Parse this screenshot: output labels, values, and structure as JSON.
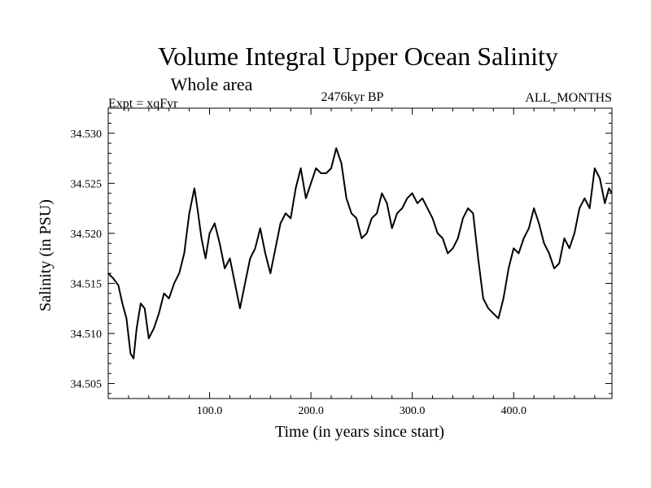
{
  "chart_data": {
    "type": "line",
    "title": "Volume Integral Upper Ocean Salinity",
    "subtitle": "Whole area",
    "expt_label": "Expt = xqFvr",
    "period_label": "2476kyr BP",
    "months_label": "ALL_MONTHS",
    "xlabel": "Time (in years since start)",
    "ylabel": "Salinity (in PSU)",
    "xlim": [
      0,
      497
    ],
    "ylim": [
      34.5035,
      34.5325
    ],
    "xticks": [
      100,
      200,
      300,
      400
    ],
    "xtick_labels": [
      "100.0",
      "200.0",
      "300.0",
      "400.0"
    ],
    "yticks": [
      34.505,
      34.51,
      34.515,
      34.52,
      34.525,
      34.53
    ],
    "ytick_labels": [
      "34.505",
      "34.510",
      "34.515",
      "34.520",
      "34.525",
      "34.530"
    ],
    "grid": false,
    "series": [
      {
        "name": "Salinity",
        "color": "#000000",
        "x": [
          0,
          5,
          10,
          14,
          18,
          22,
          25,
          28,
          32,
          36,
          40,
          45,
          50,
          55,
          60,
          65,
          70,
          75,
          80,
          85,
          88,
          92,
          96,
          100,
          105,
          110,
          115,
          120,
          125,
          130,
          135,
          140,
          145,
          150,
          155,
          160,
          165,
          170,
          175,
          180,
          185,
          190,
          195,
          200,
          205,
          210,
          215,
          220,
          225,
          230,
          235,
          240,
          245,
          250,
          255,
          260,
          265,
          270,
          275,
          280,
          285,
          290,
          295,
          300,
          305,
          310,
          315,
          320,
          325,
          330,
          335,
          340,
          345,
          350,
          355,
          360,
          365,
          370,
          375,
          380,
          385,
          390,
          395,
          400,
          405,
          410,
          415,
          420,
          425,
          430,
          435,
          440,
          445,
          450,
          455,
          460,
          465,
          470,
          475,
          480,
          485,
          490,
          494,
          497
        ],
        "values": [
          34.516,
          34.5155,
          34.5148,
          34.513,
          34.5115,
          34.508,
          34.5075,
          34.5105,
          34.513,
          34.5125,
          34.5095,
          34.5105,
          34.512,
          34.514,
          34.5135,
          34.515,
          34.516,
          34.518,
          34.522,
          34.5245,
          34.5225,
          34.5195,
          34.5175,
          34.52,
          34.521,
          34.519,
          34.5165,
          34.5175,
          34.515,
          34.5125,
          34.515,
          34.5175,
          34.5185,
          34.5205,
          34.518,
          34.516,
          34.5185,
          34.521,
          34.522,
          34.5215,
          34.5245,
          34.5265,
          34.5235,
          34.525,
          34.5265,
          34.526,
          34.526,
          34.5265,
          34.5285,
          34.527,
          34.5235,
          34.522,
          34.5215,
          34.5195,
          34.52,
          34.5215,
          34.522,
          34.524,
          34.523,
          34.5205,
          34.522,
          34.5225,
          34.5235,
          34.524,
          34.523,
          34.5235,
          34.5225,
          34.5215,
          34.52,
          34.5195,
          34.518,
          34.5185,
          34.5195,
          34.5215,
          34.5225,
          34.522,
          34.5175,
          34.5135,
          34.5125,
          34.512,
          34.5115,
          34.5135,
          34.5165,
          34.5185,
          34.518,
          34.5195,
          34.5205,
          34.5225,
          34.521,
          34.519,
          34.518,
          34.5165,
          34.517,
          34.5195,
          34.5185,
          34.52,
          34.5225,
          34.5235,
          34.5225,
          34.5265,
          34.5255,
          34.523,
          34.5245,
          34.524
        ]
      }
    ]
  }
}
